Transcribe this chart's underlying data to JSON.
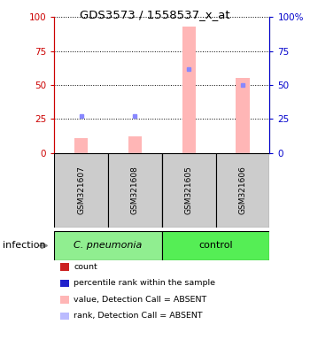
{
  "title": "GDS3573 / 1558537_x_at",
  "samples": [
    "GSM321607",
    "GSM321608",
    "GSM321605",
    "GSM321606"
  ],
  "bar_values": [
    11,
    12,
    93,
    55
  ],
  "bar_color": "#ffb6b6",
  "dot_values": [
    27,
    27,
    62,
    50
  ],
  "dot_color": "#8888ff",
  "ylim": [
    0,
    100
  ],
  "yticks": [
    0,
    25,
    50,
    75,
    100
  ],
  "left_axis_color": "#cc0000",
  "right_axis_color": "#0000cc",
  "legend_colors": [
    "#cc2222",
    "#2222cc",
    "#ffb6b6",
    "#bbbbff"
  ],
  "legend_labels": [
    "count",
    "percentile rank within the sample",
    "value, Detection Call = ABSENT",
    "rank, Detection Call = ABSENT"
  ],
  "group_label": "infection",
  "group_labels": [
    "C. pneumonia",
    "control"
  ],
  "group_colors": [
    "#90ee90",
    "#55ee55"
  ],
  "sample_box_color": "#cccccc",
  "bar_width": 0.25
}
